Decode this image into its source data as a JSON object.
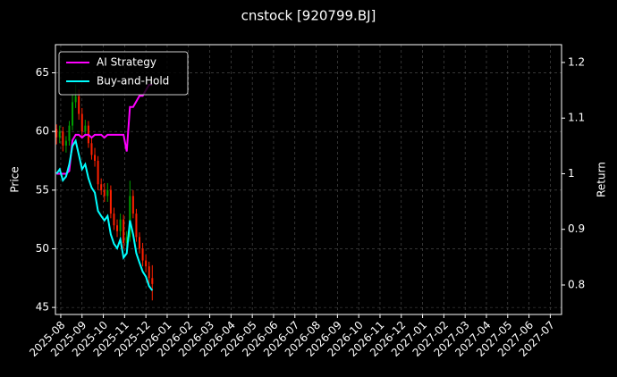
{
  "chart_data": {
    "type": "candlestick",
    "title": "cnstock [920799.BJ]",
    "y_label": "Price",
    "y2_label": "Return",
    "up_color": "#00a000",
    "down_color": "#ff2000",
    "grid": true,
    "legend_position": "upper-left",
    "xlim": [
      -0.25,
      23.53
    ],
    "xticks": [
      {
        "value": 0,
        "label": "2025-08"
      },
      {
        "value": 1,
        "label": "2025-09"
      },
      {
        "value": 2,
        "label": "2025-10"
      },
      {
        "value": 3,
        "label": "2025-11"
      },
      {
        "value": 4,
        "label": "2025-12"
      },
      {
        "value": 5,
        "label": "2026-01"
      },
      {
        "value": 6,
        "label": "2026-02"
      },
      {
        "value": 7,
        "label": "2026-03"
      },
      {
        "value": 8,
        "label": "2026-04"
      },
      {
        "value": 9,
        "label": "2026-05"
      },
      {
        "value": 10,
        "label": "2026-06"
      },
      {
        "value": 11,
        "label": "2026-07"
      },
      {
        "value": 12,
        "label": "2026-08"
      },
      {
        "value": 13,
        "label": "2026-09"
      },
      {
        "value": 14,
        "label": "2026-10"
      },
      {
        "value": 15,
        "label": "2026-11"
      },
      {
        "value": 16,
        "label": "2026-12"
      },
      {
        "value": 17,
        "label": "2027-01"
      },
      {
        "value": 18,
        "label": "2027-02"
      },
      {
        "value": 19,
        "label": "2027-03"
      },
      {
        "value": 20,
        "label": "2027-04"
      },
      {
        "value": 21,
        "label": "2027-05"
      },
      {
        "value": 22,
        "label": "2027-06"
      },
      {
        "value": 23,
        "label": "2027-07"
      }
    ],
    "ylim": [
      44.4,
      67.4
    ],
    "yticks": [
      45,
      50,
      55,
      60,
      65
    ],
    "y2lim": [
      0.747,
      1.232
    ],
    "y2ticks": [
      0.8,
      0.9,
      1.0,
      1.1,
      1.2
    ],
    "x": [
      -0.2,
      -0.05,
      0.1,
      0.25,
      0.4,
      0.55,
      0.7,
      0.85,
      1.0,
      1.15,
      1.3,
      1.45,
      1.6,
      1.75,
      1.9,
      2.05,
      2.2,
      2.35,
      2.5,
      2.65,
      2.8,
      2.95,
      3.1,
      3.25,
      3.4,
      3.55,
      3.7,
      3.85,
      4.0,
      4.15,
      4.3
    ],
    "open": [
      60.2,
      59.5,
      60.0,
      58.8,
      59.2,
      60.5,
      62.5,
      63.0,
      61.5,
      60.0,
      60.5,
      59.0,
      58.0,
      57.5,
      55.5,
      55.0,
      54.5,
      55.0,
      53.0,
      52.0,
      51.5,
      52.5,
      50.5,
      51.0,
      54.5,
      53.0,
      51.0,
      50.0,
      49.0,
      48.5,
      47.5
    ],
    "high": [
      60.6,
      60.5,
      60.4,
      59.6,
      60.9,
      63.2,
      64.0,
      63.6,
      62.0,
      61.0,
      60.9,
      59.4,
      58.6,
      57.9,
      56.0,
      55.6,
      55.6,
      55.4,
      53.5,
      52.5,
      53.0,
      52.9,
      51.5,
      55.8,
      55.0,
      53.4,
      51.4,
      50.5,
      49.5,
      48.9,
      48.6
    ],
    "low": [
      58.9,
      59.0,
      58.3,
      58.2,
      58.8,
      60.1,
      62.0,
      61.0,
      59.5,
      59.6,
      58.6,
      57.6,
      57.0,
      55.0,
      54.6,
      54.0,
      54.0,
      52.6,
      51.6,
      51.0,
      51.1,
      50.0,
      50.1,
      50.6,
      52.6,
      50.6,
      49.6,
      48.5,
      48.0,
      47.0,
      45.6
    ],
    "close": [
      59.5,
      60.0,
      58.8,
      59.2,
      60.5,
      62.5,
      63.0,
      61.5,
      60.0,
      60.5,
      59.0,
      58.0,
      57.5,
      55.5,
      55.0,
      54.5,
      55.0,
      53.0,
      52.0,
      51.5,
      52.5,
      50.5,
      51.0,
      54.5,
      53.0,
      51.0,
      50.0,
      49.0,
      48.5,
      47.5,
      47.0
    ],
    "series": [
      {
        "name": "AI Strategy",
        "color": "#ff00ff",
        "axis": "y2",
        "values": [
          1.0,
          1.0,
          1.0,
          1.0,
          1.005,
          1.06,
          1.07,
          1.07,
          1.065,
          1.07,
          1.07,
          1.065,
          1.07,
          1.07,
          1.07,
          1.065,
          1.07,
          1.07,
          1.07,
          1.07,
          1.07,
          1.07,
          1.04,
          1.12,
          1.12,
          1.13,
          1.14,
          1.14,
          1.15,
          1.16,
          1.16
        ]
      },
      {
        "name": "Buy-and-Hold",
        "color": "#00ffff",
        "axis": "y2",
        "values": [
          1.0,
          1.008,
          0.988,
          0.995,
          1.017,
          1.05,
          1.059,
          1.034,
          1.008,
          1.017,
          0.992,
          0.975,
          0.966,
          0.933,
          0.924,
          0.916,
          0.924,
          0.891,
          0.874,
          0.866,
          0.882,
          0.849,
          0.857,
          0.916,
          0.891,
          0.857,
          0.84,
          0.824,
          0.815,
          0.798,
          0.79
        ]
      }
    ]
  }
}
